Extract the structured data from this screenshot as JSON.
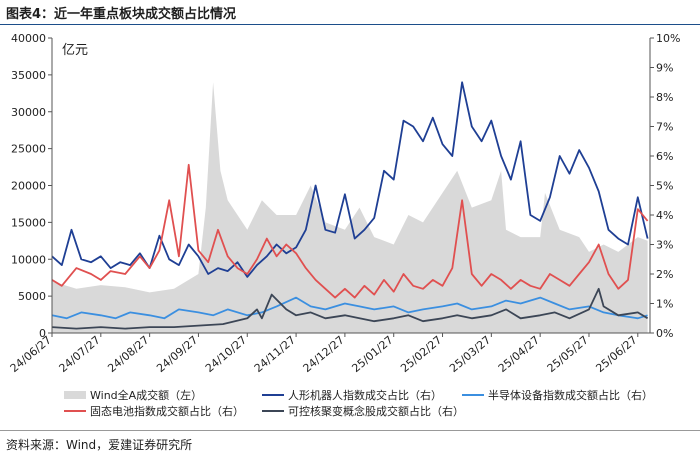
{
  "figure_title": "图表4：近一年重点板块成交额占比情况",
  "source_note": "资料来源：Wind，爱建证券研究所",
  "chart_data": {
    "type": "line",
    "title": "近一年重点板块成交额占比情况",
    "y_unit_label": "亿元",
    "x_ticks": [
      "24/06/27",
      "24/07/27",
      "24/08/27",
      "24/09/27",
      "24/10/27",
      "24/11/27",
      "24/12/27",
      "25/01/27",
      "25/02/27",
      "25/03/27",
      "25/04/27",
      "25/05/27",
      "25/06/27"
    ],
    "y_left": {
      "min": 0,
      "max": 40000,
      "step": 5000,
      "ticks": [
        "0",
        "5000",
        "10000",
        "15000",
        "20000",
        "25000",
        "30000",
        "35000",
        "40000"
      ]
    },
    "y_right": {
      "min": 0,
      "max": 10,
      "step": 1,
      "ticks": [
        "0%",
        "1%",
        "2%",
        "3%",
        "4%",
        "5%",
        "6%",
        "7%",
        "8%",
        "9%",
        "10%"
      ]
    },
    "month_index": [
      0,
      1,
      2,
      3,
      4,
      5,
      6,
      7,
      8,
      9,
      10,
      11,
      12
    ],
    "series": [
      {
        "name": "Wind全A成交额（左）",
        "axis": "left",
        "kind": "area",
        "color": "#d9d9d9",
        "x": [
          0,
          0.5,
          1,
          1.5,
          2,
          2.5,
          3,
          3.15,
          3.3,
          3.45,
          3.6,
          3.8,
          4,
          4.3,
          4.6,
          5,
          5.3,
          5.6,
          6,
          6.3,
          6.6,
          7,
          7.3,
          7.6,
          8,
          8.3,
          8.6,
          9,
          9.2,
          9.3,
          9.6,
          10,
          10.1,
          10.4,
          10.8,
          11,
          11.3,
          11.6,
          12,
          12.2
        ],
        "values": [
          7000,
          6000,
          6500,
          6200,
          5500,
          6000,
          8000,
          17000,
          34000,
          22000,
          18000,
          16000,
          14000,
          18000,
          16000,
          16000,
          20000,
          15000,
          14000,
          17000,
          13000,
          12000,
          16000,
          15000,
          19000,
          22000,
          17000,
          18000,
          22000,
          14000,
          13000,
          13000,
          19000,
          14000,
          13000,
          11000,
          12000,
          11000,
          13000,
          12500
        ]
      },
      {
        "name": "人形机器人指数成交占比（右）",
        "axis": "right",
        "kind": "line",
        "color": "#1f3f94",
        "x": [
          0,
          0.2,
          0.4,
          0.6,
          0.8,
          1,
          1.2,
          1.4,
          1.6,
          1.8,
          2,
          2.2,
          2.4,
          2.6,
          2.8,
          3,
          3.2,
          3.4,
          3.6,
          3.8,
          4,
          4.2,
          4.4,
          4.6,
          4.8,
          5,
          5.2,
          5.4,
          5.6,
          5.8,
          6,
          6.2,
          6.4,
          6.6,
          6.8,
          7,
          7.2,
          7.4,
          7.6,
          7.8,
          8,
          8.2,
          8.4,
          8.6,
          8.8,
          9,
          9.2,
          9.4,
          9.6,
          9.8,
          10,
          10.2,
          10.4,
          10.6,
          10.8,
          11,
          11.2,
          11.4,
          11.6,
          11.8,
          12,
          12.2
        ],
        "values": [
          2.6,
          2.3,
          3.5,
          2.5,
          2.4,
          2.6,
          2.2,
          2.4,
          2.3,
          2.7,
          2.2,
          3.3,
          2.5,
          2.3,
          3.0,
          2.6,
          2.0,
          2.2,
          2.1,
          2.4,
          1.9,
          2.3,
          2.6,
          3.0,
          2.7,
          2.9,
          3.5,
          5.0,
          3.5,
          3.4,
          4.7,
          3.2,
          3.5,
          3.9,
          5.5,
          5.2,
          7.2,
          7.0,
          6.5,
          7.3,
          6.4,
          6.0,
          8.5,
          7.0,
          6.5,
          7.2,
          6.0,
          5.2,
          6.5,
          4.0,
          3.8,
          4.6,
          6.0,
          5.4,
          6.2,
          5.6,
          4.8,
          3.5,
          3.2,
          3.0,
          4.6,
          3.2
        ]
      },
      {
        "name": "半导体设备指数成交额占比（右）",
        "axis": "right",
        "kind": "line",
        "color": "#3b8fe0",
        "x": [
          0,
          0.3,
          0.6,
          1,
          1.3,
          1.6,
          2,
          2.3,
          2.6,
          3,
          3.3,
          3.6,
          4,
          4.3,
          4.6,
          5,
          5.3,
          5.6,
          6,
          6.3,
          6.6,
          7,
          7.3,
          7.6,
          8,
          8.3,
          8.6,
          9,
          9.3,
          9.6,
          10,
          10.3,
          10.6,
          11,
          11.3,
          11.6,
          12,
          12.2
        ],
        "values": [
          0.6,
          0.5,
          0.7,
          0.6,
          0.5,
          0.7,
          0.6,
          0.5,
          0.8,
          0.7,
          0.6,
          0.8,
          0.6,
          0.7,
          0.9,
          1.2,
          0.9,
          0.8,
          1.0,
          0.9,
          0.8,
          0.9,
          0.7,
          0.8,
          0.9,
          1.0,
          0.8,
          0.9,
          1.1,
          1.0,
          1.2,
          1.0,
          0.8,
          0.9,
          0.7,
          0.6,
          0.5,
          0.6
        ]
      },
      {
        "name": "固态电池指数成交额占比（右）",
        "axis": "right",
        "kind": "line",
        "color": "#e05050",
        "x": [
          0,
          0.2,
          0.5,
          0.8,
          1,
          1.2,
          1.5,
          1.8,
          2,
          2.2,
          2.4,
          2.6,
          2.8,
          3,
          3.2,
          3.4,
          3.6,
          3.8,
          4,
          4.2,
          4.4,
          4.6,
          4.8,
          5,
          5.2,
          5.4,
          5.6,
          5.8,
          6,
          6.2,
          6.4,
          6.6,
          6.8,
          7,
          7.2,
          7.4,
          7.6,
          7.8,
          8,
          8.2,
          8.4,
          8.6,
          8.8,
          9,
          9.2,
          9.4,
          9.6,
          9.8,
          10,
          10.2,
          10.4,
          10.6,
          10.8,
          11,
          11.2,
          11.4,
          11.6,
          11.8,
          12,
          12.2
        ],
        "values": [
          1.8,
          1.6,
          2.2,
          2.0,
          1.8,
          2.1,
          2.0,
          2.6,
          2.2,
          2.8,
          4.5,
          2.6,
          5.7,
          2.8,
          2.4,
          3.5,
          2.6,
          2.2,
          2.0,
          2.5,
          3.2,
          2.6,
          3.0,
          2.7,
          2.2,
          1.8,
          1.5,
          1.2,
          1.5,
          1.2,
          1.6,
          1.3,
          1.8,
          1.4,
          2.0,
          1.6,
          1.5,
          1.8,
          1.6,
          2.2,
          4.5,
          2.0,
          1.6,
          2.0,
          1.8,
          1.5,
          1.8,
          1.6,
          1.5,
          2.0,
          1.8,
          1.6,
          2.0,
          2.4,
          3.0,
          2.0,
          1.5,
          1.8,
          4.2,
          3.8
        ]
      },
      {
        "name": "可控核聚变概念股成交额占比（右）",
        "axis": "right",
        "kind": "line",
        "color": "#3c4656",
        "x": [
          0,
          0.5,
          1,
          1.5,
          2,
          2.5,
          3,
          3.5,
          4,
          4.2,
          4.3,
          4.5,
          4.8,
          5,
          5.3,
          5.6,
          6,
          6.3,
          6.6,
          7,
          7.3,
          7.6,
          8,
          8.3,
          8.6,
          9,
          9.3,
          9.6,
          10,
          10.3,
          10.6,
          11,
          11.2,
          11.3,
          11.6,
          12,
          12.2
        ],
        "values": [
          0.2,
          0.15,
          0.2,
          0.15,
          0.2,
          0.2,
          0.25,
          0.3,
          0.5,
          0.8,
          0.5,
          1.3,
          0.8,
          0.6,
          0.7,
          0.5,
          0.6,
          0.5,
          0.4,
          0.5,
          0.6,
          0.4,
          0.5,
          0.6,
          0.5,
          0.6,
          0.8,
          0.5,
          0.6,
          0.7,
          0.5,
          0.8,
          1.5,
          0.9,
          0.6,
          0.7,
          0.5
        ]
      }
    ]
  }
}
